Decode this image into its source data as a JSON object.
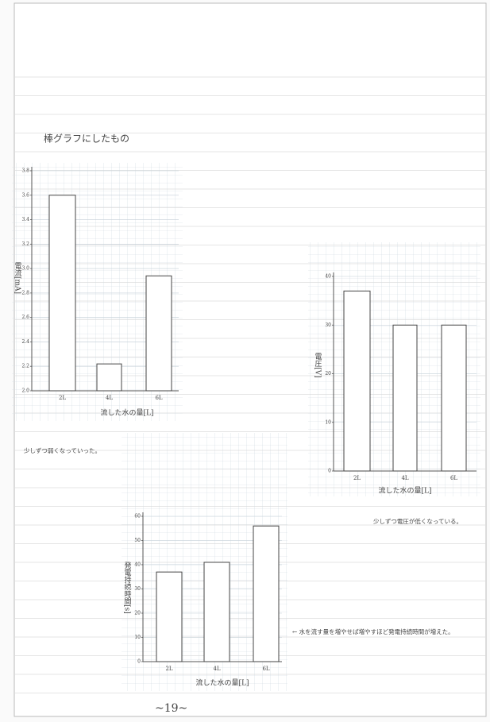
{
  "heading": "棒グラフにしたもの",
  "page_number": "~19~",
  "chart_data": [
    {
      "type": "bar",
      "y_label": "電流[mA]",
      "x_label": "流した水の量[L]",
      "categories": [
        "2L",
        "4L",
        "6L"
      ],
      "values": [
        3.6,
        2.22,
        2.94
      ],
      "ylim": [
        2.0,
        3.8
      ],
      "yticks": [
        {
          "value": 2.0,
          "label": "2.0"
        },
        2.2,
        2.4,
        2.6,
        2.8,
        {
          "value": 3.0,
          "label": "3.0"
        },
        3.2,
        3.4,
        3.6,
        3.8
      ],
      "grid": true,
      "color": "#ffffff",
      "annotation": "少しずつ弱くなっていった。"
    },
    {
      "type": "bar",
      "y_label": "電圧[V]",
      "x_label": "流した水の量[L]",
      "categories": [
        "2L",
        "4L",
        "6L"
      ],
      "values": [
        37,
        30,
        30
      ],
      "ylim": [
        0,
        40
      ],
      "yticks": [
        0,
        10,
        20,
        30,
        40
      ],
      "grid": true,
      "color": "#ffffff",
      "annotation": "少しずつ電圧が低くなっている。"
    },
    {
      "type": "bar",
      "y_label": "発電持続時間[s]",
      "x_label": "流した水の量[L]",
      "categories": [
        "2L",
        "4L",
        "6L"
      ],
      "values": [
        37,
        41,
        56
      ],
      "ylim": [
        0,
        60
      ],
      "yticks": [
        0,
        10,
        20,
        30,
        40,
        50,
        60
      ],
      "grid": true,
      "color": "#ffffff",
      "annotation": "← 水を流す量を増やせば増やすほど発電持続時間が増えた。"
    }
  ]
}
